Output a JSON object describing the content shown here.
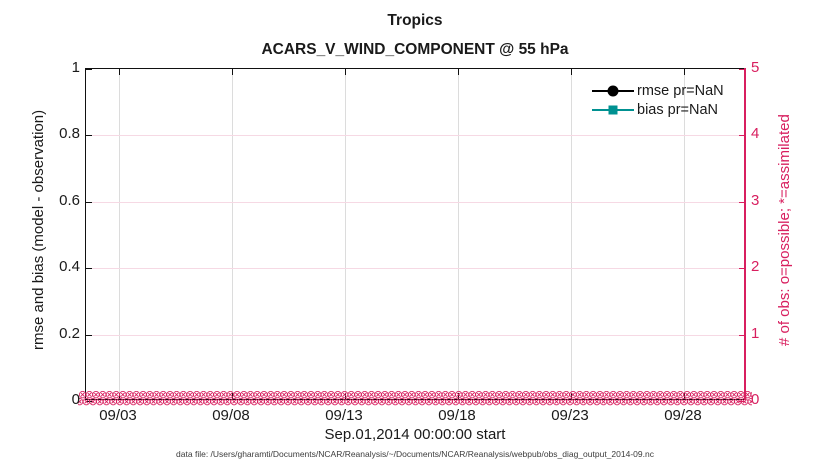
{
  "figure": {
    "title": "Tropics",
    "subtitle": "ACARS_V_WIND_COMPONENT @ 55 hPa",
    "xlabel": "Sep.01,2014 00:00:00 start",
    "caption": "data file: /Users/gharamti/Documents/NCAR/Reanalysis/~/Documents/NCAR/Reanalysis/webpub/obs_diag_output_2014-09.nc",
    "left_axis": {
      "label": "rmse and bias (model - observation)",
      "ticks": [
        "1",
        "0.8",
        "0.6",
        "0.4",
        "0.2",
        "0"
      ]
    },
    "right_axis": {
      "label": "# of obs: o=possible; *=assimilated",
      "ticks": [
        "5",
        "4",
        "3",
        "2",
        "1",
        "0"
      ],
      "color": "#d81f5f"
    },
    "x_axis": {
      "ticks": [
        "09/03",
        "09/08",
        "09/13",
        "09/18",
        "09/23",
        "09/28"
      ]
    },
    "legend": {
      "items": [
        {
          "label": "rmse pr=NaN",
          "marker": "filled-circle",
          "color": "#000000"
        },
        {
          "label": "bias pr=NaN",
          "marker": "filled-square",
          "color": "#009191"
        }
      ]
    },
    "obs_band": {
      "glyph": "⊗",
      "color": "#d81f5f"
    }
  },
  "chart_data": {
    "type": "line",
    "title": "Tropics",
    "subtitle": "ACARS_V_WIND_COMPONENT @ 55 hPa",
    "xlabel": "Sep.01,2014 00:00:00 start",
    "ylabel_left": "rmse and bias (model - observation)",
    "ylabel_right": "# of obs: o=possible; *=assimilated",
    "ylim_left": [
      0,
      1
    ],
    "ylim_right": [
      0,
      5
    ],
    "x_ticks": [
      "09/03",
      "09/08",
      "09/13",
      "09/18",
      "09/23",
      "09/28"
    ],
    "grid": true,
    "legend_position": "upper right",
    "series": [
      {
        "name": "rmse pr=NaN",
        "axis": "left",
        "color": "#000000",
        "marker": "circle",
        "values": [
          null,
          null,
          null,
          null,
          null,
          null
        ],
        "note": "all NaN, nothing plotted"
      },
      {
        "name": "bias pr=NaN",
        "axis": "left",
        "color": "#009191",
        "marker": "square",
        "values": [
          null,
          null,
          null,
          null,
          null,
          null
        ],
        "note": "all NaN, nothing plotted"
      },
      {
        "name": "# of obs possible (o)",
        "axis": "right",
        "color": "#d81f5f",
        "marker": "o",
        "values": [
          0,
          0,
          0,
          0,
          0,
          0
        ],
        "note": "0 at every time bin across Sep 2014"
      },
      {
        "name": "# of obs assimilated (*)",
        "axis": "right",
        "color": "#d81f5f",
        "marker": "*",
        "values": [
          0,
          0,
          0,
          0,
          0,
          0
        ],
        "note": "0 at every time bin across Sep 2014"
      }
    ]
  }
}
